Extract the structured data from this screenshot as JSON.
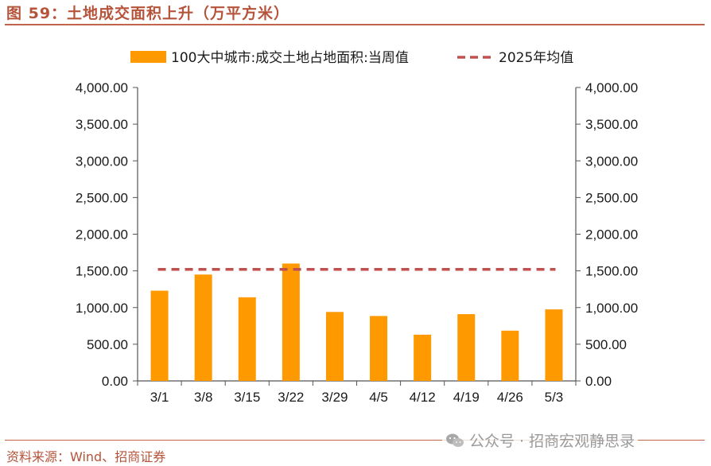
{
  "figure": {
    "title": "图 59：土地成交面积上升（万平方米）",
    "source": "资料来源：Wind、招商证券",
    "watermark": "公众号 · 招商宏观静思录",
    "watermark_icon": "wechat-icon"
  },
  "colors": {
    "accent": "#b5543a",
    "bar": "#ff9900",
    "avg_line": "#c0504d"
  },
  "chart_data": {
    "type": "bar",
    "categories": [
      "3/1",
      "3/8",
      "3/15",
      "3/22",
      "3/29",
      "4/5",
      "4/12",
      "4/19",
      "4/26",
      "5/3"
    ],
    "series": [
      {
        "name": "100大中城市:成交土地占地面积:当周值",
        "values": [
          1230,
          1450,
          1140,
          1600,
          940,
          885,
          630,
          910,
          685,
          975
        ]
      },
      {
        "name": "2025年均值",
        "value": 1520,
        "style": "dashed-line"
      }
    ],
    "ylim": [
      0,
      4000
    ],
    "yticks": [
      "0.00",
      "500.00",
      "1,000.00",
      "1,500.00",
      "2,000.00",
      "2,500.00",
      "3,000.00",
      "3,500.00",
      "4,000.00"
    ],
    "ytick_values": [
      0,
      500,
      1000,
      1500,
      2000,
      2500,
      3000,
      3500,
      4000
    ],
    "dual_y_axis": true,
    "grid": false,
    "legend_position": "top"
  }
}
